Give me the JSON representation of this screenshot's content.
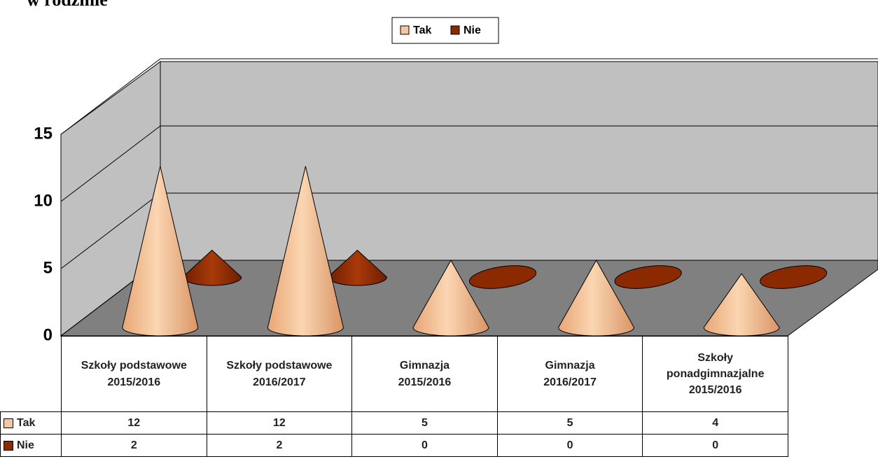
{
  "chart_data": {
    "type": "cone3d",
    "title": "w rodzinie",
    "categories": [
      "Szkoły podstawowe\n2015/2016",
      "Szkoły podstawowe\n2016/2017",
      "Gimnazja\n2015/2016",
      "Gimnazja\n2016/2017",
      "Szkoły\nponadgimnazjalne\n2015/2016"
    ],
    "series": [
      {
        "name": "Tak",
        "color": "#f6c79c",
        "values": [
          12,
          12,
          5,
          5,
          4
        ]
      },
      {
        "name": "Nie",
        "color": "#8b2a00",
        "values": [
          2,
          2,
          0,
          0,
          0
        ]
      }
    ],
    "ylim": [
      0,
      15
    ],
    "yticks": [
      0,
      5,
      10,
      15
    ],
    "grid": true,
    "legend": "top",
    "data_table": true
  }
}
